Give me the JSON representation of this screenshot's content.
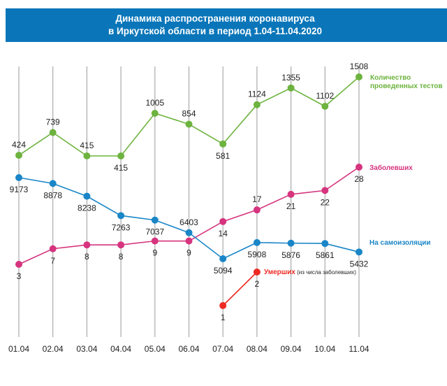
{
  "chart_data": {
    "type": "line",
    "title": [
      "Динамика распространения коронавируса",
      "в Иркутской области в период 1.04-11.04.2020"
    ],
    "categories": [
      "01.04",
      "02.04",
      "03.04",
      "04.04",
      "05.04",
      "06.04",
      "07.04",
      "08.04",
      "09.04",
      "10.04",
      "11.04"
    ],
    "grid": "vertical",
    "series": [
      {
        "name": "Количество проведенных тестов",
        "name_lines": [
          "Количество",
          "проведенных тестов"
        ],
        "color": "#6db33f",
        "values": [
          424,
          739,
          415,
          415,
          1005,
          854,
          581,
          1124,
          1355,
          1102,
          1508
        ],
        "label_pos": [
          "above",
          "above",
          "above",
          "below",
          "above",
          "above",
          "below",
          "above",
          "above",
          "above",
          "above"
        ]
      },
      {
        "name": "Заболевших",
        "name_lines": [
          "Заболевших"
        ],
        "color": "#d6347f",
        "values": [
          3,
          7,
          8,
          8,
          9,
          9,
          14,
          17,
          21,
          22,
          28
        ],
        "label_pos": [
          "below",
          "below",
          "below",
          "below",
          "below",
          "below",
          "below",
          "above",
          "below",
          "below",
          "below"
        ]
      },
      {
        "name": "На самоизоляции",
        "name_lines": [
          "На самоизоляции"
        ],
        "color": "#1a86c7",
        "values": [
          9173,
          8878,
          8238,
          7263,
          7037,
          6403,
          5094,
          5908,
          5876,
          5861,
          5432
        ],
        "label_pos": [
          "below",
          "below",
          "below",
          "below",
          "below",
          "above",
          "below",
          "below",
          "below",
          "below",
          "below"
        ]
      },
      {
        "name": "Умерших",
        "name_note": "(из числа заболевших)",
        "color": "#ee2a24",
        "values": [
          null,
          null,
          null,
          null,
          null,
          null,
          1,
          2,
          null,
          null,
          null
        ],
        "label_pos": [
          null,
          null,
          null,
          null,
          null,
          null,
          "below",
          "below",
          null,
          null,
          null
        ]
      }
    ]
  }
}
